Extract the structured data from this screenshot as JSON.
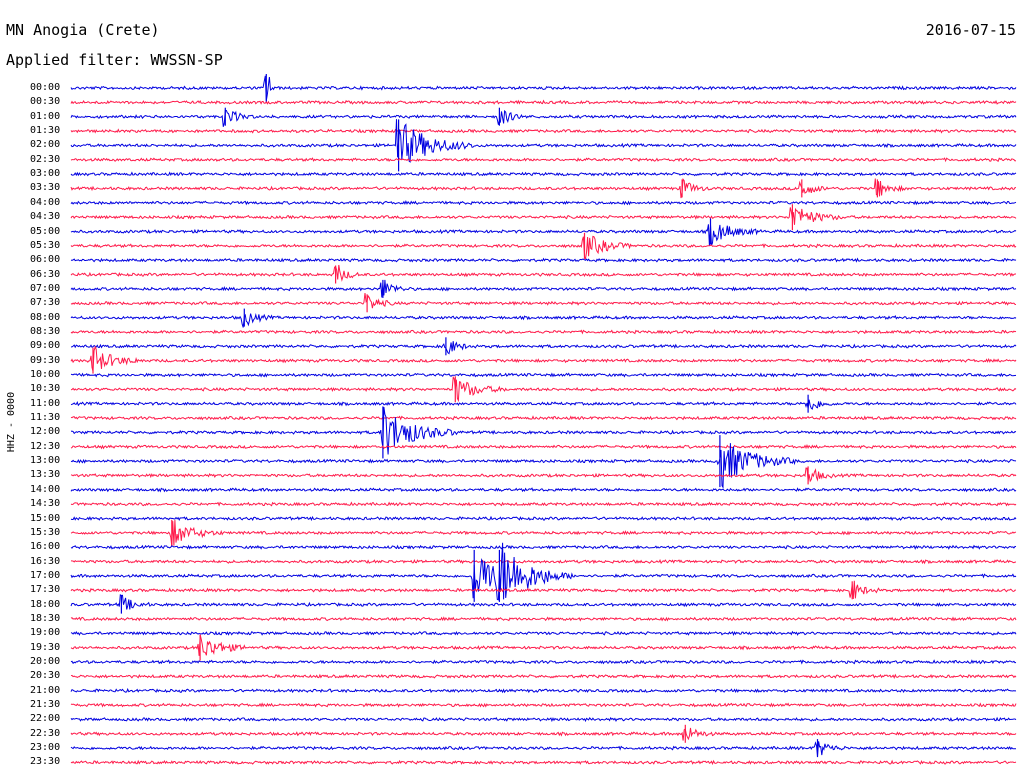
{
  "header": {
    "station": "MN Anogia (Crete)",
    "date": "2016-07-15",
    "filter": "Applied filter: WWSSN-SP"
  },
  "colors": {
    "even_row": "#0000e0",
    "odd_row": "#ff1a4a",
    "text": "#000000"
  },
  "chart_data": {
    "type": "line",
    "title": "MN Anogia (Crete)",
    "subtitle": "Applied filter: WWSSN-SP",
    "ylabel": "HHZ - 0000",
    "xlabel": "",
    "row_interval_minutes": 30,
    "rows": [
      "00:00",
      "00:30",
      "01:00",
      "01:30",
      "02:00",
      "02:30",
      "03:00",
      "03:30",
      "04:00",
      "04:30",
      "05:00",
      "05:30",
      "06:00",
      "06:30",
      "07:00",
      "07:30",
      "08:00",
      "08:30",
      "09:00",
      "09:30",
      "10:00",
      "10:30",
      "11:00",
      "11:30",
      "12:00",
      "12:30",
      "13:00",
      "13:30",
      "14:00",
      "14:30",
      "15:00",
      "15:30",
      "16:00",
      "16:30",
      "17:00",
      "17:30",
      "18:00",
      "18:30",
      "19:00",
      "19:30",
      "20:00",
      "20:30",
      "21:00",
      "21:30",
      "22:00",
      "22:30",
      "23:00",
      "23:30"
    ],
    "events": [
      {
        "row": "00:00",
        "minute": 6.2,
        "amplitude": "spike"
      },
      {
        "row": "01:00",
        "minute": 4.9,
        "amplitude": "small"
      },
      {
        "row": "01:00",
        "minute": 13.6,
        "amplitude": "small"
      },
      {
        "row": "02:00",
        "minute": 10.4,
        "amplitude": "large"
      },
      {
        "row": "03:30",
        "minute": 19.4,
        "amplitude": "small"
      },
      {
        "row": "03:30",
        "minute": 23.2,
        "amplitude": "small"
      },
      {
        "row": "03:30",
        "minute": 25.6,
        "amplitude": "small"
      },
      {
        "row": "04:30",
        "minute": 22.9,
        "amplitude": "medium"
      },
      {
        "row": "05:00",
        "minute": 20.3,
        "amplitude": "medium"
      },
      {
        "row": "05:30",
        "minute": 16.3,
        "amplitude": "medium"
      },
      {
        "row": "06:30",
        "minute": 8.4,
        "amplitude": "small"
      },
      {
        "row": "07:00",
        "minute": 9.9,
        "amplitude": "small"
      },
      {
        "row": "07:30",
        "minute": 9.4,
        "amplitude": "small"
      },
      {
        "row": "08:00",
        "minute": 5.5,
        "amplitude": "small"
      },
      {
        "row": "09:00",
        "minute": 11.9,
        "amplitude": "small"
      },
      {
        "row": "09:30",
        "minute": 0.7,
        "amplitude": "medium"
      },
      {
        "row": "10:30",
        "minute": 12.2,
        "amplitude": "medium"
      },
      {
        "row": "11:00",
        "minute": 23.4,
        "amplitude": "small"
      },
      {
        "row": "12:00",
        "minute": 9.9,
        "amplitude": "large"
      },
      {
        "row": "13:00",
        "minute": 20.6,
        "amplitude": "large"
      },
      {
        "row": "13:30",
        "minute": 23.4,
        "amplitude": "small"
      },
      {
        "row": "15:30",
        "minute": 3.2,
        "amplitude": "medium"
      },
      {
        "row": "17:00",
        "minute": 12.8,
        "amplitude": "large"
      },
      {
        "row": "17:00",
        "minute": 13.6,
        "amplitude": "large"
      },
      {
        "row": "17:30",
        "minute": 24.8,
        "amplitude": "small"
      },
      {
        "row": "18:00",
        "minute": 1.6,
        "amplitude": "small"
      },
      {
        "row": "19:30",
        "minute": 4.1,
        "amplitude": "medium"
      },
      {
        "row": "22:30",
        "minute": 19.5,
        "amplitude": "small"
      },
      {
        "row": "23:00",
        "minute": 23.7,
        "amplitude": "small"
      }
    ],
    "grid": false,
    "legend": "none"
  }
}
